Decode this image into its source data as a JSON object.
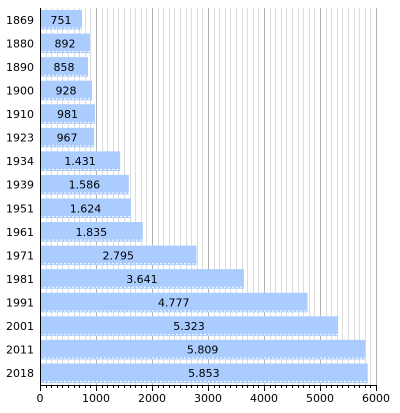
{
  "chart_data": {
    "type": "bar",
    "orientation": "horizontal",
    "categories": [
      "1869",
      "1880",
      "1890",
      "1900",
      "1910",
      "1923",
      "1934",
      "1939",
      "1951",
      "1961",
      "1971",
      "1981",
      "1991",
      "2001",
      "2011",
      "2018"
    ],
    "values": [
      751,
      892,
      858,
      928,
      981,
      967,
      1431,
      1586,
      1624,
      1835,
      2795,
      3641,
      4777,
      5323,
      5809,
      5853
    ],
    "value_labels": [
      "751",
      "892",
      "858",
      "928",
      "981",
      "967",
      "1.431",
      "1.586",
      "1.624",
      "1.835",
      "2.795",
      "3.641",
      "4.777",
      "5.323",
      "5.809",
      "5.853"
    ],
    "xlim": [
      0,
      6000
    ],
    "x_ticks": [
      0,
      1000,
      2000,
      3000,
      4000,
      5000,
      6000
    ],
    "x_tick_labels": [
      "0",
      "1000",
      "2000",
      "3000",
      "4000",
      "5000",
      "6000"
    ],
    "grid": true,
    "title": "",
    "xlabel": "",
    "ylabel": "",
    "colors": {
      "bar": "#aaccff",
      "grid_major": "#b3b3b3",
      "grid_minor": "#dcdcdc",
      "axis": "#000000",
      "bar_divider": "#ffffff"
    }
  }
}
